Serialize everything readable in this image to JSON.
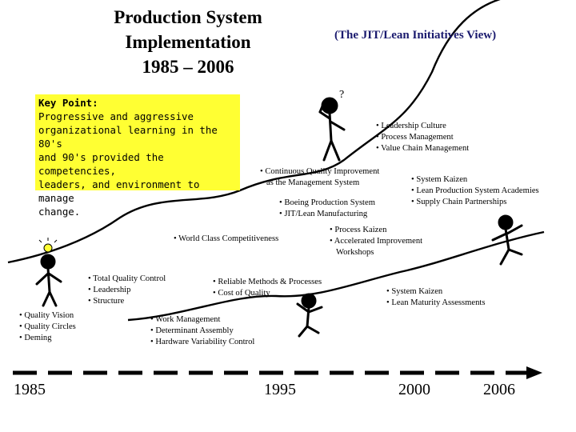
{
  "title": {
    "line1": "Production System",
    "line2": "Implementation",
    "line3": "1985 – 2006"
  },
  "subtitle": "(The JIT/Lean Initiatives View)",
  "key_point": {
    "heading": "Key Point:",
    "lines": [
      "Progressive and aggressive",
      "organizational learning in the 80's",
      "and 90's provided the competencies,",
      "leaders, and environment to manage",
      "change."
    ]
  },
  "groups": {
    "quality": [
      "Quality Vision",
      "Quality Circles",
      "Deming"
    ],
    "tqc": [
      "Total Quality Control",
      "Leadership",
      "Structure"
    ],
    "wcc": [
      "World Class Competitiveness"
    ],
    "reliable": [
      "Reliable Methods & Processes",
      "Cost of Quality"
    ],
    "work": [
      "Work Management",
      "Determinant Assembly",
      "Hardware Variability Control"
    ],
    "boeing": [
      "Boeing Production System",
      "JIT/Lean Manufacturing"
    ],
    "cqi": [
      "Continuous Quality Improvement",
      "as the Management System"
    ],
    "leadership": [
      "Leadership Culture",
      "Process Management",
      "Value Chain Management"
    ],
    "system_kaizen": [
      "System Kaizen",
      "Lean Production System Academies",
      "Supply Chain Partnerships"
    ],
    "process_kaizen": [
      "Process Kaizen",
      "Accelerated Improvement",
      "Workshops"
    ],
    "lean_maturity": [
      "System Kaizen",
      "Lean Maturity Assessments"
    ]
  },
  "years": [
    "1985",
    "1995",
    "2000",
    "2006"
  ],
  "icons": [
    "thinking-figure-icon",
    "lightbulb-figure-icon",
    "dancing-figure-icon",
    "celebrating-figure-icon",
    "question-mark-icon",
    "arrow-right-icon"
  ]
}
